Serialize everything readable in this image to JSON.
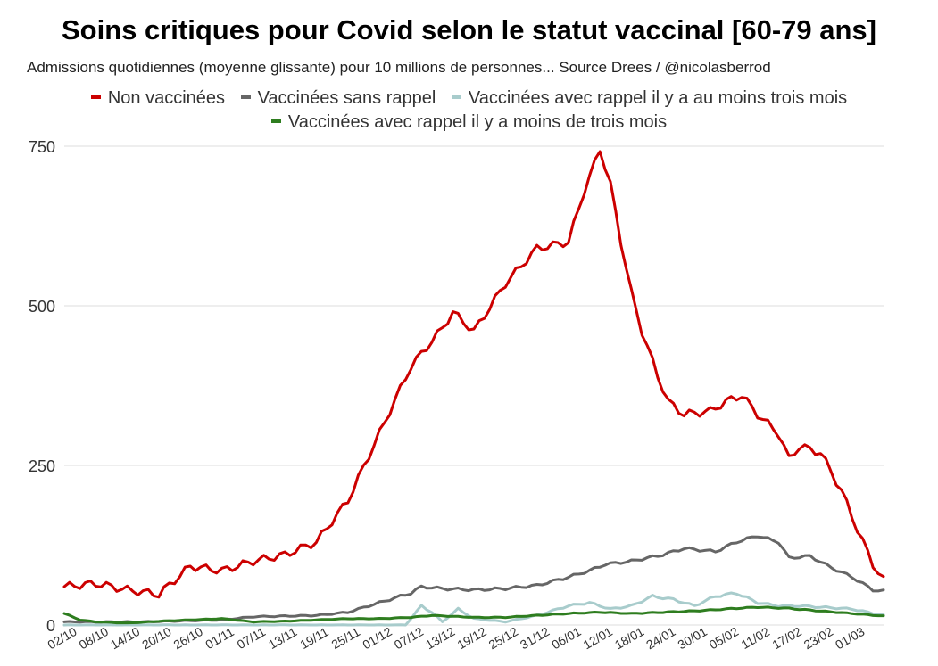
{
  "header": {
    "title": "Soins critiques pour Covid selon le statut vaccinal [60-79 ans]",
    "subtitle": "Admissions quotidiennes (moyenne glissante) pour 10 millions de personnes... Source Drees / @nicolasberrod"
  },
  "legend": [
    {
      "label": "Non vaccinées",
      "color": "#cc0000"
    },
    {
      "label": "Vaccinées sans rappel",
      "color": "#666666"
    },
    {
      "label": "Vaccinées avec rappel il y a au moins trois mois",
      "color": "#a8cccc"
    },
    {
      "label": "Vaccinées avec rappel il y a moins de trois mois",
      "color": "#2e7d1f"
    }
  ],
  "chart_data": {
    "type": "line",
    "title": "Soins critiques pour Covid selon le statut vaccinal [60-79 ans]",
    "subtitle": "Admissions quotidiennes (moyenne glissante) pour 10 millions de personnes... Source Drees / @nicolasberrod",
    "xlabel": "",
    "ylabel": "",
    "ylim": [
      0,
      750
    ],
    "yticks": [
      0,
      250,
      500,
      750
    ],
    "x_tick_labels": [
      "02/10",
      "08/10",
      "14/10",
      "20/10",
      "26/10",
      "01/11",
      "07/11",
      "13/11",
      "19/11",
      "25/11",
      "01/12",
      "07/12",
      "13/12",
      "19/12",
      "25/12",
      "31/12",
      "06/01",
      "12/01",
      "18/01",
      "24/01",
      "30/01",
      "05/02",
      "11/02",
      "17/02",
      "23/02",
      "01/03"
    ],
    "grid": true,
    "legend_position": "top",
    "n_days": 157,
    "series": [
      {
        "name": "Non vaccinées",
        "color": "#cc0000",
        "keypoints": [
          [
            0,
            60
          ],
          [
            6,
            65
          ],
          [
            12,
            55
          ],
          [
            18,
            48
          ],
          [
            24,
            92
          ],
          [
            30,
            85
          ],
          [
            36,
            100
          ],
          [
            42,
            110
          ],
          [
            48,
            130
          ],
          [
            54,
            195
          ],
          [
            60,
            300
          ],
          [
            66,
            405
          ],
          [
            72,
            465
          ],
          [
            74,
            490
          ],
          [
            78,
            460
          ],
          [
            84,
            535
          ],
          [
            90,
            590
          ],
          [
            96,
            600
          ],
          [
            99,
            680
          ],
          [
            102,
            745
          ],
          [
            104,
            690
          ],
          [
            106,
            600
          ],
          [
            108,
            520
          ],
          [
            110,
            460
          ],
          [
            113,
            390
          ],
          [
            115,
            350
          ],
          [
            118,
            330
          ],
          [
            123,
            335
          ],
          [
            126,
            350
          ],
          [
            129,
            360
          ],
          [
            132,
            330
          ],
          [
            136,
            300
          ],
          [
            138,
            260
          ],
          [
            140,
            280
          ],
          [
            144,
            270
          ],
          [
            148,
            210
          ],
          [
            151,
            150
          ],
          [
            154,
            95
          ],
          [
            156,
            70
          ],
          [
            159,
            80
          ]
        ]
      },
      {
        "name": "Vaccinées sans rappel",
        "color": "#666666",
        "keypoints": [
          [
            0,
            5
          ],
          [
            15,
            5
          ],
          [
            30,
            8
          ],
          [
            36,
            13
          ],
          [
            48,
            15
          ],
          [
            54,
            20
          ],
          [
            60,
            35
          ],
          [
            66,
            50
          ],
          [
            68,
            60
          ],
          [
            72,
            57
          ],
          [
            78,
            55
          ],
          [
            84,
            57
          ],
          [
            90,
            62
          ],
          [
            96,
            75
          ],
          [
            100,
            85
          ],
          [
            103,
            95
          ],
          [
            108,
            100
          ],
          [
            114,
            110
          ],
          [
            118,
            120
          ],
          [
            124,
            115
          ],
          [
            128,
            130
          ],
          [
            132,
            140
          ],
          [
            136,
            130
          ],
          [
            138,
            105
          ],
          [
            142,
            108
          ],
          [
            146,
            90
          ],
          [
            150,
            75
          ],
          [
            154,
            55
          ],
          [
            159,
            50
          ]
        ]
      },
      {
        "name": "Vaccinées avec rappel il y a au moins trois mois",
        "color": "#a8cccc",
        "keypoints": [
          [
            65,
            0
          ],
          [
            68,
            30
          ],
          [
            70,
            20
          ],
          [
            72,
            5
          ],
          [
            75,
            25
          ],
          [
            78,
            10
          ],
          [
            84,
            5
          ],
          [
            90,
            15
          ],
          [
            96,
            30
          ],
          [
            100,
            35
          ],
          [
            104,
            25
          ],
          [
            108,
            30
          ],
          [
            112,
            45
          ],
          [
            116,
            40
          ],
          [
            120,
            30
          ],
          [
            124,
            45
          ],
          [
            128,
            50
          ],
          [
            132,
            35
          ],
          [
            136,
            30
          ],
          [
            140,
            30
          ],
          [
            144,
            28
          ],
          [
            150,
            25
          ],
          [
            156,
            15
          ],
          [
            159,
            10
          ]
        ]
      },
      {
        "name": "Vaccinées avec rappel il y a moins de trois mois",
        "color": "#2e7d1f",
        "keypoints": [
          [
            0,
            18
          ],
          [
            3,
            8
          ],
          [
            6,
            5
          ],
          [
            12,
            3
          ],
          [
            18,
            6
          ],
          [
            24,
            8
          ],
          [
            30,
            10
          ],
          [
            36,
            5
          ],
          [
            42,
            6
          ],
          [
            48,
            8
          ],
          [
            54,
            10
          ],
          [
            60,
            10
          ],
          [
            66,
            12
          ],
          [
            70,
            15
          ],
          [
            78,
            12
          ],
          [
            84,
            12
          ],
          [
            90,
            15
          ],
          [
            96,
            18
          ],
          [
            102,
            20
          ],
          [
            108,
            18
          ],
          [
            114,
            20
          ],
          [
            120,
            22
          ],
          [
            126,
            25
          ],
          [
            132,
            28
          ],
          [
            138,
            26
          ],
          [
            144,
            22
          ],
          [
            150,
            18
          ],
          [
            156,
            14
          ],
          [
            159,
            12
          ]
        ]
      }
    ]
  }
}
